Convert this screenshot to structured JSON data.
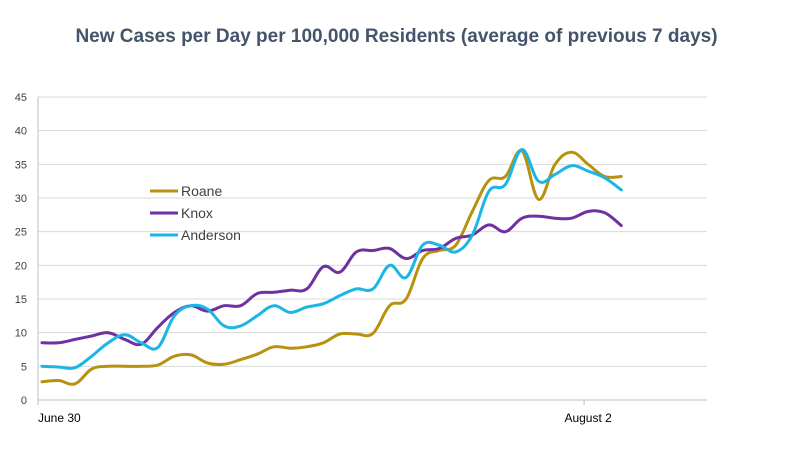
{
  "chart_data": {
    "type": "line",
    "title": "New Cases per Day per 100,000 Residents (average of previous 7 days)",
    "xlabel": "",
    "ylabel": "",
    "ylim": [
      0,
      45
    ],
    "y_ticks": [
      "0",
      "5",
      "10",
      "15",
      "20",
      "25",
      "30",
      "35",
      "40",
      "45"
    ],
    "x_tick_labels": [
      {
        "label": "June 30",
        "day": 0
      },
      {
        "label": "August 2",
        "day": 33
      }
    ],
    "x_range_days": [
      0,
      40
    ],
    "grid": "horizontal",
    "legend_position": "left-middle",
    "series": [
      {
        "name": "Roane",
        "color": "#b8920f",
        "x": [
          0,
          1,
          2,
          3,
          4,
          5,
          6,
          7,
          8,
          9,
          10,
          11,
          12,
          13,
          14,
          15,
          16,
          17,
          18,
          19,
          20,
          21,
          22,
          23,
          24,
          25,
          26,
          27,
          28,
          29,
          30,
          31,
          32,
          33,
          34,
          35
        ],
        "values": [
          2.7,
          2.9,
          2.4,
          4.6,
          5.0,
          5.0,
          5.0,
          5.2,
          6.5,
          6.7,
          5.5,
          5.3,
          6.0,
          6.8,
          7.9,
          7.7,
          7.9,
          8.5,
          9.8,
          9.8,
          9.9,
          14.0,
          15.0,
          21.0,
          22.2,
          23.0,
          28.0,
          32.6,
          33.2,
          37.0,
          29.8,
          35.0,
          36.8,
          35.0,
          33.2,
          33.2
        ]
      },
      {
        "name": "Knox",
        "color": "#7030a0",
        "x": [
          0,
          1,
          2,
          3,
          4,
          5,
          6,
          7,
          8,
          9,
          10,
          11,
          12,
          13,
          14,
          15,
          16,
          17,
          18,
          19,
          20,
          21,
          22,
          23,
          24,
          25,
          26,
          27,
          28,
          29,
          30,
          31,
          32,
          33,
          34,
          35
        ],
        "values": [
          8.5,
          8.5,
          9.0,
          9.5,
          10.0,
          9.0,
          8.3,
          10.8,
          13.0,
          14.0,
          13.2,
          14.0,
          14.0,
          15.8,
          16.0,
          16.3,
          16.5,
          19.8,
          19.0,
          22.0,
          22.2,
          22.5,
          21.0,
          22.2,
          22.5,
          24.0,
          24.5,
          26.0,
          25.0,
          27.0,
          27.3,
          27.0,
          27.0,
          28.0,
          27.8,
          25.9
        ]
      },
      {
        "name": "Anderson",
        "color": "#1cb5e8",
        "x": [
          0,
          1,
          2,
          3,
          4,
          5,
          6,
          7,
          8,
          9,
          10,
          11,
          12,
          13,
          14,
          15,
          16,
          17,
          18,
          19,
          20,
          21,
          22,
          23,
          24,
          25,
          26,
          27,
          28,
          29,
          30,
          31,
          32,
          33,
          34,
          35
        ],
        "values": [
          5.0,
          4.9,
          4.8,
          6.5,
          8.5,
          9.7,
          8.5,
          7.8,
          12.5,
          14.0,
          13.5,
          11.0,
          11.0,
          12.5,
          14.0,
          13.0,
          13.8,
          14.3,
          15.5,
          16.5,
          16.5,
          20.0,
          18.2,
          23.0,
          23.0,
          22.0,
          24.5,
          31.0,
          32.0,
          37.2,
          32.5,
          33.5,
          34.8,
          34.0,
          33.0,
          31.2
        ]
      }
    ]
  }
}
